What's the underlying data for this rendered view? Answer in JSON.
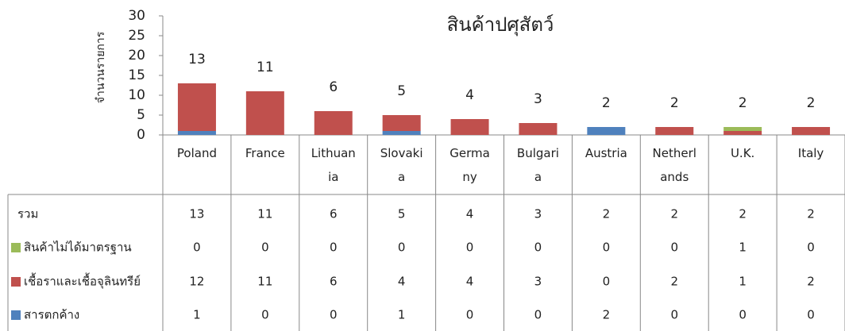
{
  "chart_data": {
    "type": "stacked_bar",
    "title": "สินค้าปศุสัตว์",
    "y_label": "จำนวนรายการ",
    "categories": [
      "Poland",
      "France",
      "Lithuania",
      "Slovakia",
      "Germany",
      "Bulgaria",
      "Austria",
      "Netherlands",
      "U.K.",
      "Italy"
    ],
    "series": [
      {
        "name": "สารตกค้าง",
        "color": "#4f81bd",
        "values": [
          1,
          0,
          0,
          1,
          0,
          0,
          2,
          0,
          0,
          0
        ]
      },
      {
        "name": "เชื้อราและเชื้อจุลินทรีย์",
        "color": "#c0504d",
        "values": [
          12,
          11,
          6,
          4,
          4,
          3,
          0,
          2,
          1,
          2
        ]
      },
      {
        "name": "สินค้าไม่ได้มาตรฐาน",
        "color": "#9bbb59",
        "values": [
          0,
          0,
          0,
          0,
          0,
          0,
          0,
          0,
          1,
          0
        ]
      }
    ],
    "totals": {
      "name": "รวม",
      "values": [
        13,
        11,
        6,
        5,
        4,
        3,
        2,
        2,
        2,
        2
      ]
    },
    "ylim": [
      0,
      30
    ],
    "yticks": [
      0,
      5,
      10,
      15,
      20,
      25,
      30
    ],
    "grid": false
  }
}
